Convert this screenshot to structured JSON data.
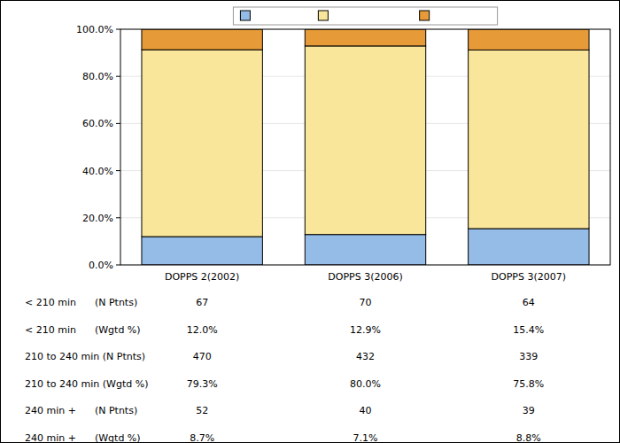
{
  "chart_data": {
    "type": "bar",
    "stacked": true,
    "grid": true,
    "legend": "top",
    "categories": [
      "DOPPS 2(2002)",
      "DOPPS 3(2006)",
      "DOPPS 3(2007)"
    ],
    "series": [
      {
        "name": "< 210 min",
        "color": "#94bce6",
        "values": [
          12.0,
          12.9,
          15.4
        ]
      },
      {
        "name": "210 to 240 min",
        "color": "#fae69a",
        "values": [
          79.3,
          80.0,
          75.8
        ]
      },
      {
        "name": "240 min +",
        "color": "#e69a38",
        "values": [
          8.7,
          7.1,
          8.8
        ]
      }
    ],
    "ylim": [
      0,
      100
    ],
    "yticks": [
      {
        "value": 0,
        "label": "0.0%"
      },
      {
        "value": 20,
        "label": "20.0%"
      },
      {
        "value": 40,
        "label": "40.0%"
      },
      {
        "value": 60,
        "label": "60.0%"
      },
      {
        "value": 80,
        "label": "80.0%"
      },
      {
        "value": 100,
        "label": "100.0%"
      }
    ],
    "table": {
      "row_labels": [
        "< 210 min      (N Ptnts)",
        "< 210 min      (Wgtd %)",
        "210 to 240 min (N Ptnts)",
        "210 to 240 min (Wgtd %)",
        "240 min +      (N Ptnts)",
        "240 min +      (Wgtd %)"
      ],
      "cells": [
        [
          67,
          70,
          64
        ],
        [
          "12.0%",
          "12.9%",
          "15.4%"
        ],
        [
          470,
          432,
          339
        ],
        [
          "79.3%",
          "80.0%",
          "75.8%"
        ],
        [
          52,
          40,
          39
        ],
        [
          "8.7%",
          "7.1%",
          "8.8%"
        ]
      ]
    }
  }
}
